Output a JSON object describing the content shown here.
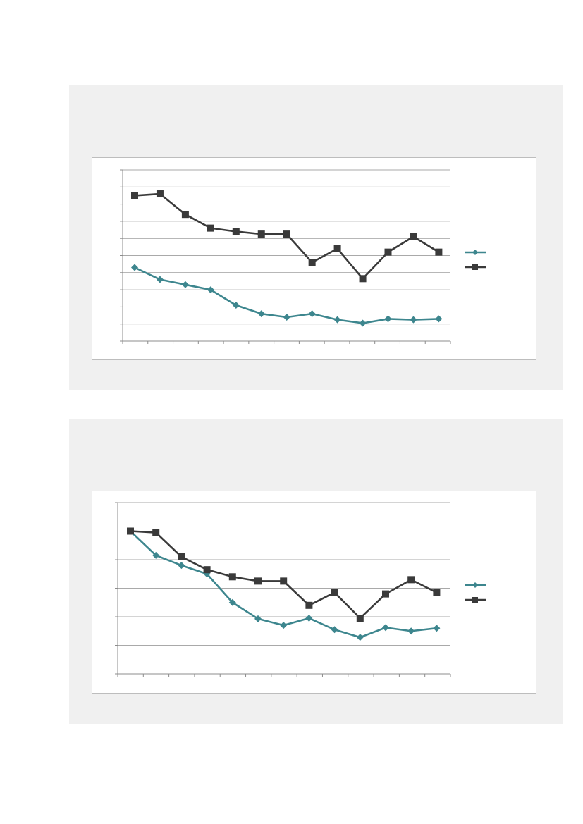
{
  "chart_data": [
    {
      "type": "line",
      "categories": [
        "",
        "",
        "",
        "",
        "",
        "",
        "",
        "",
        "",
        "",
        "",
        "",
        ""
      ],
      "ylim": [
        0,
        10
      ],
      "grid": true,
      "legend_position": "right",
      "series": [
        {
          "color": "#3d868e",
          "marker": "diamond",
          "values": [
            4.3,
            3.6,
            3.3,
            3.0,
            2.1,
            1.6,
            1.4,
            1.6,
            1.25,
            1.05,
            1.3,
            1.25,
            1.3
          ]
        },
        {
          "color": "#3a3a3a",
          "marker": "square",
          "values": [
            8.5,
            8.6,
            7.4,
            6.6,
            6.4,
            6.25,
            6.25,
            4.6,
            5.4,
            3.65,
            5.2,
            6.1,
            5.2
          ]
        }
      ]
    },
    {
      "type": "line",
      "categories": [
        "",
        "",
        "",
        "",
        "",
        "",
        "",
        "",
        "",
        "",
        "",
        "",
        ""
      ],
      "ylim": [
        0,
        6
      ],
      "grid": true,
      "legend_position": "right",
      "series": [
        {
          "color": "#3d868e",
          "marker": "diamond",
          "values": [
            5.0,
            4.15,
            3.8,
            3.5,
            2.5,
            1.93,
            1.7,
            1.95,
            1.55,
            1.28,
            1.62,
            1.5,
            1.6
          ]
        },
        {
          "color": "#3a3a3a",
          "marker": "square",
          "values": [
            5.0,
            4.95,
            4.1,
            3.65,
            3.4,
            3.25,
            3.25,
            2.4,
            2.85,
            1.95,
            2.8,
            3.3,
            2.85
          ]
        }
      ]
    }
  ]
}
